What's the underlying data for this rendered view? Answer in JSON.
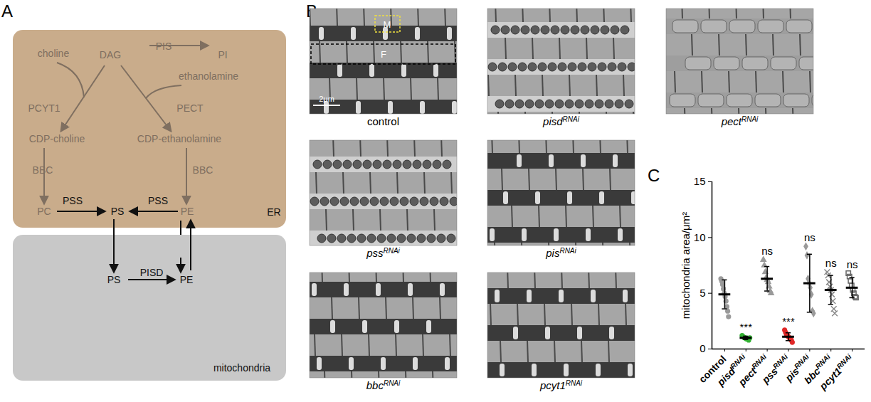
{
  "panel_labels": [
    "A",
    "B",
    "C"
  ],
  "diagram": {
    "compartments": [
      "ER",
      "mitochondria"
    ],
    "labels": [
      "choline",
      "DAG",
      "PIS",
      "PI",
      "ethanolamine",
      "PCYT1",
      "PECT",
      "CDP-choline",
      "CDP-ethanolamine",
      "BBC",
      "BBC",
      "PC",
      "PSS",
      "PS",
      "PSS",
      "PE",
      "PS",
      "PISD",
      "PE"
    ]
  },
  "micrographs": {
    "labels": [
      {
        "name": "control"
      },
      {
        "name": "pisd",
        "superscript": "RNAi"
      },
      {
        "name": "pect",
        "superscript": "RNAi"
      },
      {
        "name": "pss",
        "superscript": "RNAi"
      },
      {
        "name": "pis",
        "superscript": "RNAi"
      },
      {
        "name": "bbc",
        "superscript": "RNAi"
      },
      {
        "name": "pcyt1",
        "superscript": "RNAi"
      }
    ],
    "mito_box": "M",
    "fibril_box": "F",
    "scale_bar": "2μm"
  },
  "chart_data": {
    "type": "scatter",
    "y_label": "mitochondria area/μm²",
    "categories": [
      "control",
      "pisd",
      "pect",
      "pss",
      "pis",
      "bbc",
      "pcyt1"
    ],
    "category_superscripts": [
      null,
      "RNAi",
      "RNAi",
      "RNAi",
      "RNAi",
      "RNAi",
      "RNAi"
    ],
    "ylim": [
      0,
      15
    ],
    "yticks": [
      0,
      5,
      10,
      15
    ],
    "annotations": [
      null,
      "***",
      "ns",
      "***",
      "ns",
      "ns",
      "ns"
    ],
    "groups": [
      {
        "points": [
          6.3,
          6.1,
          5.8,
          5.4,
          5.0,
          4.7,
          4.3,
          3.8,
          3.4,
          2.9
        ],
        "mean": 4.9,
        "sd": 1.3,
        "color": "#9a9a9a",
        "marker": "circle"
      },
      {
        "points": [
          1.2,
          1.1,
          1.0,
          1.0,
          0.9,
          0.9,
          0.8,
          1.0
        ],
        "mean": 1.0,
        "sd": 0.15,
        "color": "#33b233",
        "marker": "circle"
      },
      {
        "points": [
          8.0,
          7.5,
          6.9,
          6.4,
          6.2,
          6.0,
          5.6,
          5.2,
          5.0
        ],
        "mean": 6.3,
        "sd": 1.1,
        "color": "#9a9a9a",
        "marker": "triangle"
      },
      {
        "points": [
          1.7,
          1.5,
          1.3,
          1.2,
          1.1,
          1.0,
          0.9,
          0.8,
          0.6
        ],
        "mean": 1.1,
        "sd": 0.35,
        "color": "#e02828",
        "marker": "circle"
      },
      {
        "points": [
          9.2,
          8.4,
          6.3,
          5.9,
          5.5,
          4.9,
          3.4,
          3.2
        ],
        "mean": 5.9,
        "sd": 2.6,
        "color": "#9a9a9a",
        "marker": "diamond"
      },
      {
        "points": [
          6.9,
          6.6,
          6.0,
          5.6,
          5.3,
          4.9,
          4.3,
          3.6,
          3.2
        ],
        "mean": 5.3,
        "sd": 1.3,
        "color": "#8a8a8a",
        "marker": "times"
      },
      {
        "points": [
          6.8,
          6.5,
          6.1,
          5.7,
          5.3,
          5.0,
          4.7,
          4.6
        ],
        "mean": 5.5,
        "sd": 0.9,
        "color": "#666666",
        "marker": "square-open"
      }
    ]
  }
}
